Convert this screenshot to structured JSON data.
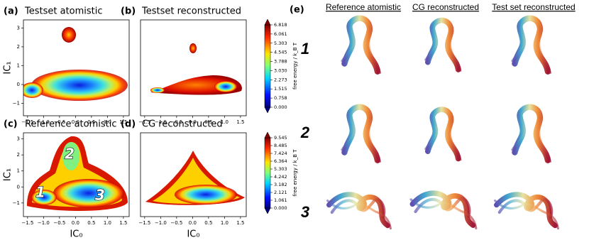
{
  "chart_data": [
    {
      "type": "heatmap",
      "panel_label": "(a)",
      "title": "Testset atomistic",
      "ylabel": "IC₁",
      "xlim": [
        -1.63,
        1.68
      ],
      "ylim": [
        -1.66,
        3.43
      ],
      "xticks": [
        {
          "value": -1.5,
          "label": "−1.5"
        },
        {
          "value": -1.0,
          "label": "−1.0"
        },
        {
          "value": -0.5,
          "label": "−0.5"
        },
        {
          "value": 0,
          "label": "0.0"
        },
        0.5,
        {
          "value": 1.0,
          "label": "1.0"
        },
        1.5
      ],
      "yticks": [
        {
          "value": -1,
          "label": "−1"
        },
        0,
        1,
        2,
        3
      ]
    },
    {
      "type": "heatmap",
      "panel_label": "(b)",
      "title": "Testset reconstructed",
      "xlim": [
        -1.63,
        1.68
      ],
      "ylim": [
        -1.66,
        3.43
      ],
      "xticks": [
        {
          "value": -1.5,
          "label": "−1.5"
        },
        {
          "value": -1.0,
          "label": "−1.0"
        },
        {
          "value": -0.5,
          "label": "−0.5"
        },
        {
          "value": 0,
          "label": "0.0"
        },
        0.5,
        {
          "value": 1.0,
          "label": "1.0"
        },
        1.5
      ],
      "colorbar": {
        "label": "free energy / k_B T",
        "clim": [
          0,
          6.818
        ],
        "ticks": [
          {
            "value": 0,
            "label": "0.000"
          },
          0.758,
          1.515,
          2.273,
          {
            "value": 3.03,
            "label": "3.030"
          },
          3.788,
          4.545,
          5.303,
          6.061,
          6.818
        ]
      }
    },
    {
      "type": "heatmap",
      "panel_label": "(c)",
      "title": "Reference atomistic",
      "ylabel": "IC₁",
      "xlabel": "IC₀",
      "xlim": [
        -1.63,
        1.68
      ],
      "ylim": [
        -1.85,
        3.38
      ],
      "xticks": [
        {
          "value": -1.5,
          "label": "−1.5"
        },
        {
          "value": -1.0,
          "label": "−1.0"
        },
        {
          "value": -0.5,
          "label": "−0.5"
        },
        {
          "value": 0,
          "label": "0.0"
        },
        0.5,
        {
          "value": 1.0,
          "label": "1.0"
        },
        1.5
      ],
      "yticks": [
        {
          "value": -1,
          "label": "−1"
        },
        0,
        1,
        2,
        3
      ],
      "annotations": [
        "1",
        "2",
        "3"
      ]
    },
    {
      "type": "heatmap",
      "panel_label": "(d)",
      "title": "CG reconstructed",
      "xlabel": "IC₀",
      "xlim": [
        -1.63,
        1.68
      ],
      "ylim": [
        -1.85,
        3.38
      ],
      "xticks": [
        {
          "value": -1.5,
          "label": "−1.5"
        },
        {
          "value": -1.0,
          "label": "−1.0"
        },
        {
          "value": -0.5,
          "label": "−0.5"
        },
        {
          "value": 0,
          "label": "0.0"
        },
        0.5,
        {
          "value": 1.0,
          "label": "1.0"
        },
        1.5
      ],
      "colorbar": {
        "label": "free energy / k_B T",
        "clim": [
          0,
          9.545
        ],
        "ticks": [
          {
            "value": 0,
            "label": "0.000"
          },
          1.061,
          2.121,
          3.182,
          4.242,
          5.303,
          6.364,
          7.424,
          8.485,
          9.545
        ]
      }
    }
  ],
  "panel_e": {
    "label": "(e)",
    "columns": [
      "Reference  atomistic",
      "CG reconstructed",
      "Test set reconstructed"
    ],
    "rows": [
      "1",
      "2",
      "3"
    ]
  }
}
